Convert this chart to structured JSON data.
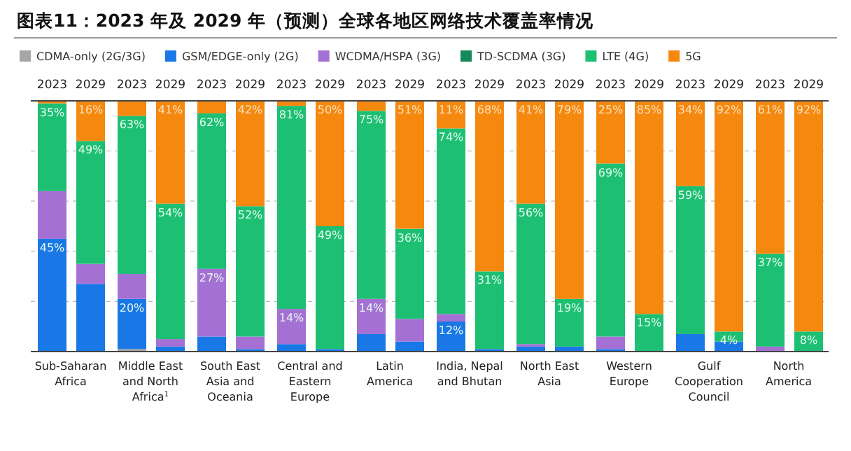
{
  "chart_data": {
    "type": "bar",
    "stacked": true,
    "title": "图表11：2023 年及 2029 年（预测）全球各地区网络技术覆盖率情况",
    "categories": [
      "2023",
      "2029",
      "2023",
      "2029",
      "2023",
      "2029",
      "2023",
      "2029",
      "2023",
      "2029",
      "2023",
      "2029",
      "2023",
      "2029",
      "2023",
      "2029",
      "2023",
      "2029",
      "2023",
      "2029"
    ],
    "annotations": [
      "Sub-Saharan Africa",
      "Middle East and North Africa$^{1}$",
      "South East Asia and Oceania",
      "Central and Eastern Europe",
      "Latin America",
      "India, Nepal and Bhutan",
      "North East Asia",
      "Western Europe",
      "Gulf Cooperation Council",
      "North America"
    ],
    "series": [
      {
        "name": "CDMA-only (2G/3G)",
        "color": "#a6a6a6",
        "values": [
          null,
          null,
          1,
          null,
          null,
          null,
          null,
          null,
          null,
          null,
          null,
          null,
          null,
          null,
          null,
          null,
          null,
          null,
          null,
          null
        ]
      },
      {
        "name": "GSM/EDGE-only (2G)",
        "color": "#1a78e6",
        "values": [
          45,
          27,
          20,
          2,
          6,
          1,
          3,
          1,
          7,
          4,
          12,
          1,
          2,
          2,
          1,
          null,
          7,
          4,
          null,
          null
        ],
        "value_labels": [
          "45%",
          null,
          "20%",
          null,
          null,
          null,
          null,
          null,
          null,
          null,
          "12%",
          null,
          null,
          null,
          null,
          null,
          null,
          null,
          null,
          null
        ]
      },
      {
        "name": "WCDMA/HSPA (3G)",
        "color": "#a470d4",
        "values": [
          19,
          8,
          10,
          3,
          27,
          5,
          14,
          null,
          14,
          9,
          3,
          null,
          1,
          null,
          5,
          null,
          null,
          null,
          2,
          null
        ],
        "value_labels": [
          null,
          null,
          null,
          null,
          "27%",
          null,
          "14%",
          null,
          "14%",
          null,
          null,
          null,
          null,
          null,
          null,
          null,
          null,
          null,
          null,
          null
        ]
      },
      {
        "name": "TD-SCDMA (3G)",
        "color": "#148a5a",
        "values": [
          null,
          null,
          null,
          null,
          null,
          null,
          null,
          null,
          null,
          null,
          null,
          null,
          null,
          null,
          null,
          null,
          null,
          null,
          null,
          null
        ]
      },
      {
        "name": "LTE (4G)",
        "color": "#1dbf73",
        "values": [
          35,
          49,
          63,
          54,
          62,
          52,
          81,
          49,
          75,
          36,
          74,
          31,
          56,
          19,
          69,
          15,
          59,
          4,
          37,
          8
        ],
        "value_labels": [
          "35%",
          "49%",
          "63%",
          "54%",
          "62%",
          "52%",
          "81%",
          "49%",
          "75%",
          "36%",
          "74%",
          "31%",
          "56%",
          "19%",
          "69%",
          "15%",
          "59%",
          "4%",
          "37%",
          "8%"
        ]
      },
      {
        "name": "5G",
        "color": "#f5880f",
        "values": [
          1,
          16,
          6,
          41,
          5,
          42,
          2,
          50,
          4,
          51,
          11,
          68,
          41,
          79,
          25,
          85,
          34,
          92,
          61,
          92
        ],
        "value_labels": [
          null,
          "16%",
          null,
          "41%",
          null,
          "42%",
          null,
          "50%",
          null,
          "51%",
          "11%",
          "68%",
          "41%",
          "79%",
          "25%",
          "85%",
          "34%",
          "92%",
          "61%",
          "92%"
        ]
      }
    ],
    "ylim": [
      0,
      100
    ],
    "yticks": [
      {
        "value": 0,
        "label": null
      },
      {
        "value": 20,
        "label": null
      },
      {
        "value": 40,
        "label": null
      },
      {
        "value": 60,
        "label": null
      },
      {
        "value": 80,
        "label": null
      },
      {
        "value": 100,
        "label": null
      }
    ],
    "grid": "y",
    "legend": "top left",
    "tick_labels": "x"
  }
}
